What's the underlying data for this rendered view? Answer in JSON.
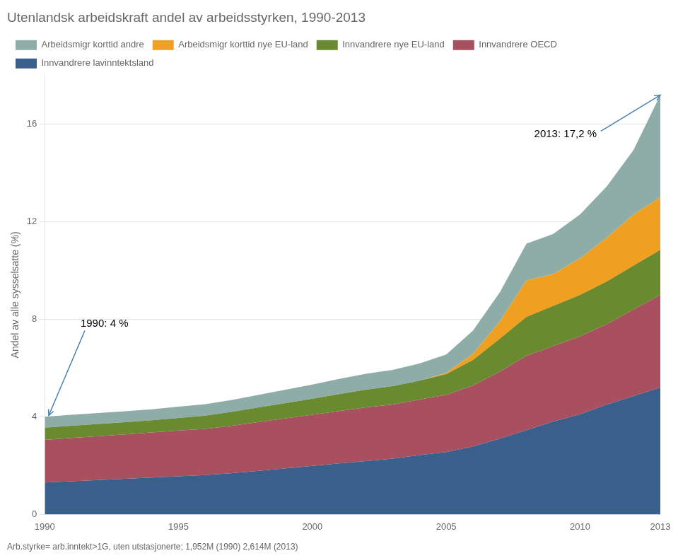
{
  "chart_data": {
    "type": "area",
    "title": "Utenlandsk arbeidskraft andel av arbeidsstyrken, 1990-2013",
    "ylabel": "Andel av alle sysselsatte (%)",
    "footnote": "Arb.styrke= arb.inntekt>1G, uten utstasjonerte; 1,952M (1990) 2,614M (2013)",
    "x": [
      1990,
      1991,
      1992,
      1993,
      1994,
      1995,
      1996,
      1997,
      1998,
      1999,
      2000,
      2001,
      2002,
      2003,
      2004,
      2005,
      2006,
      2007,
      2008,
      2009,
      2010,
      2011,
      2012,
      2013
    ],
    "series": [
      {
        "name": "Innvandrere lavinntektsland",
        "color": "#3a5f8a",
        "values": [
          1.3,
          1.35,
          1.4,
          1.45,
          1.5,
          1.55,
          1.6,
          1.68,
          1.78,
          1.88,
          1.98,
          2.08,
          2.18,
          2.28,
          2.42,
          2.55,
          2.78,
          3.1,
          3.45,
          3.8,
          4.1,
          4.5,
          4.85,
          5.2
        ]
      },
      {
        "name": "Innvandrere OECD",
        "color": "#a85060",
        "values": [
          1.75,
          1.78,
          1.8,
          1.82,
          1.85,
          1.88,
          1.9,
          1.95,
          2.0,
          2.05,
          2.1,
          2.15,
          2.2,
          2.22,
          2.28,
          2.35,
          2.5,
          2.75,
          3.05,
          3.1,
          3.2,
          3.3,
          3.55,
          3.8
        ]
      },
      {
        "name": "Innvandrere nye EU-land",
        "color": "#6a8a30",
        "values": [
          0.5,
          0.5,
          0.5,
          0.5,
          0.5,
          0.52,
          0.54,
          0.57,
          0.6,
          0.63,
          0.66,
          0.7,
          0.73,
          0.75,
          0.78,
          0.85,
          1.05,
          1.35,
          1.6,
          1.65,
          1.7,
          1.75,
          1.8,
          1.85
        ]
      },
      {
        "name": "Arbeidsmigr korttid nye EU-land",
        "color": "#f0a020",
        "values": [
          0.0,
          0.0,
          0.0,
          0.0,
          0.0,
          0.0,
          0.0,
          0.0,
          0.0,
          0.0,
          0.0,
          0.0,
          0.0,
          0.0,
          0.0,
          0.05,
          0.25,
          0.7,
          1.5,
          1.3,
          1.5,
          1.8,
          2.1,
          2.15
        ]
      },
      {
        "name": "Arbeidsmigr korttid andre",
        "color": "#8fada8",
        "values": [
          0.45,
          0.45,
          0.45,
          0.45,
          0.45,
          0.46,
          0.47,
          0.49,
          0.52,
          0.55,
          0.58,
          0.62,
          0.65,
          0.67,
          0.7,
          0.75,
          0.95,
          1.2,
          1.5,
          1.65,
          1.8,
          2.1,
          2.65,
          4.2
        ]
      }
    ],
    "stacked": true,
    "xlim": [
      1990,
      2013
    ],
    "xticks": [
      1990,
      1995,
      2000,
      2005,
      2010,
      2013
    ],
    "ylim": [
      0,
      18
    ],
    "yticks": [
      0,
      4,
      8,
      12,
      16
    ],
    "grid": true,
    "legend": "upper left",
    "annotations": [
      {
        "text": "1990: 4 %",
        "x": 1990.15,
        "y": 4.05
      },
      {
        "text": "2013: 17,2 %",
        "x": 2013.0,
        "y": 17.2
      }
    ]
  }
}
